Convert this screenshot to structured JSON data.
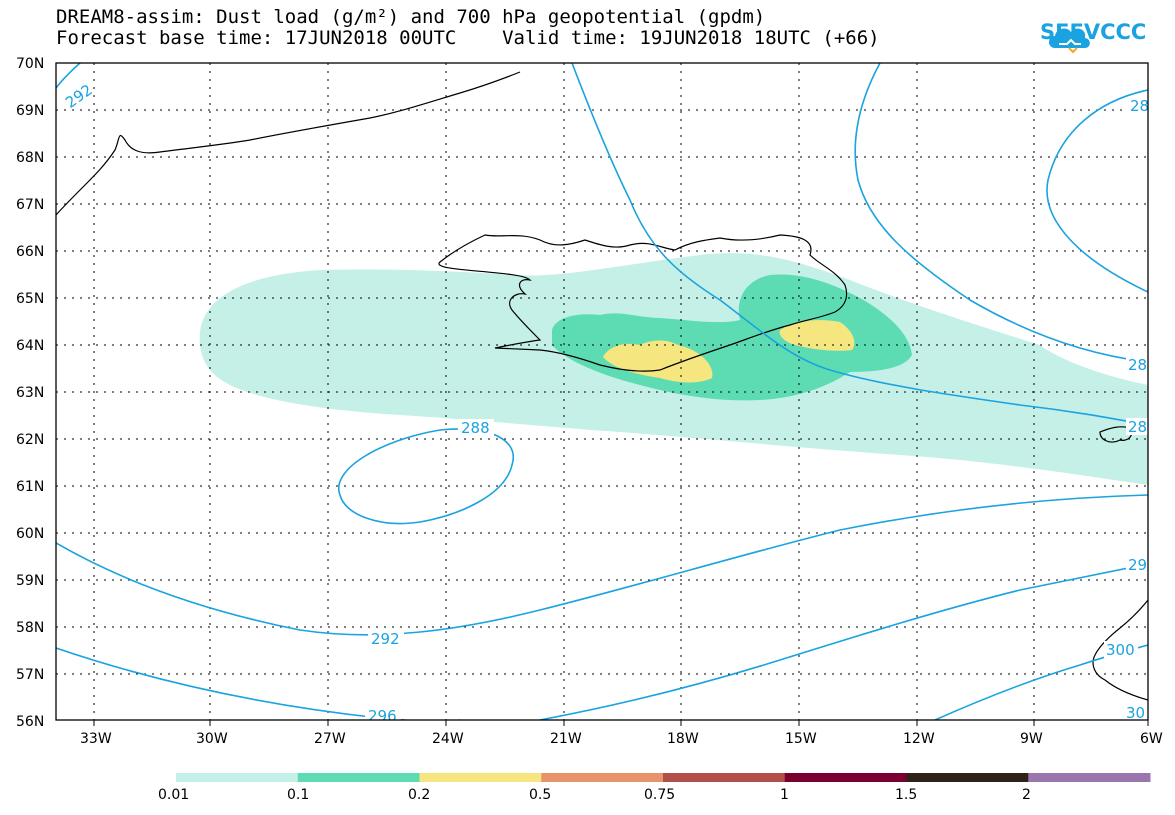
{
  "header": {
    "title_line1": "DREAM8-assim: Dust load (g/m²) and 700 hPa geopotential (gpdm)",
    "title_line2": "Forecast base time: 17JUN2018 00UTC    Valid time: 19JUN2018 18UTC (+66)"
  },
  "logo": {
    "text": "SEEVCCC",
    "icon": "cloud-icon"
  },
  "map": {
    "lat_labels": [
      "70N",
      "69N",
      "68N",
      "67N",
      "66N",
      "65N",
      "64N",
      "63N",
      "62N",
      "61N",
      "60N",
      "59N",
      "58N",
      "57N",
      "56N"
    ],
    "lon_labels": [
      "33W",
      "30W",
      "27W",
      "24W",
      "21W",
      "18W",
      "15W",
      "12W",
      "9W",
      "6W"
    ],
    "contour_labels": [
      "292",
      "288",
      "292",
      "296",
      "28",
      "28",
      "28",
      "29",
      "300",
      "30"
    ],
    "colors": {
      "contour": "#1aa3e0",
      "coast": "#000000",
      "grid": "#000000"
    }
  },
  "colorbar": {
    "ticks": [
      "0.01",
      "0.1",
      "0.2",
      "0.5",
      "0.75",
      "1",
      "1.5",
      "2"
    ],
    "colors": [
      "#c4f0e8",
      "#5ddcb4",
      "#f6e680",
      "#e8936a",
      "#b14f4a",
      "#7a0030",
      "#2e2118",
      "#9a76ad"
    ]
  }
}
